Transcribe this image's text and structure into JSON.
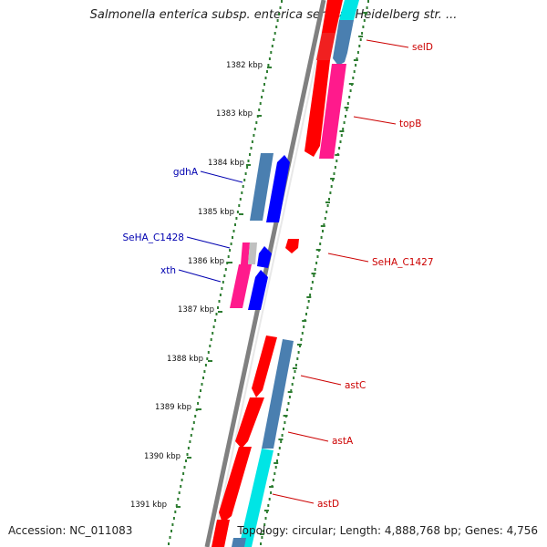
{
  "title": "Salmonella enterica subsp. enterica serovar Heidelberg str. ...",
  "accession": "Accession: NC_011083",
  "summary": "Topology: circular; Length: 4,888,768 bp; Genes: 4,756",
  "colors": {
    "backbone": "#808080",
    "tick": "#2e7d32",
    "forward_gene_label": "#cc0000",
    "reverse_gene_label": "#0000b0",
    "red": "#ff0000",
    "blue": "#0000ff",
    "steelblue": "#4a7fb0",
    "pink": "#ff1a8c",
    "cyan": "#00e5e5"
  },
  "kbp_labels": [
    "1382 kbp",
    "1383 kbp",
    "1384 kbp",
    "1385 kbp",
    "1386 kbp",
    "1387 kbp",
    "1388 kbp",
    "1389 kbp",
    "1390 kbp",
    "1391 kbp"
  ],
  "gene_labels": [
    {
      "text": "selD",
      "side": "right"
    },
    {
      "text": "topB",
      "side": "right"
    },
    {
      "text": "gdhA",
      "side": "left"
    },
    {
      "text": "SeHA_C1428",
      "side": "left"
    },
    {
      "text": "SeHA_C1427",
      "side": "right"
    },
    {
      "text": "xth",
      "side": "left"
    },
    {
      "text": "astC",
      "side": "right"
    },
    {
      "text": "astA",
      "side": "right"
    },
    {
      "text": "astD",
      "side": "right"
    }
  ]
}
